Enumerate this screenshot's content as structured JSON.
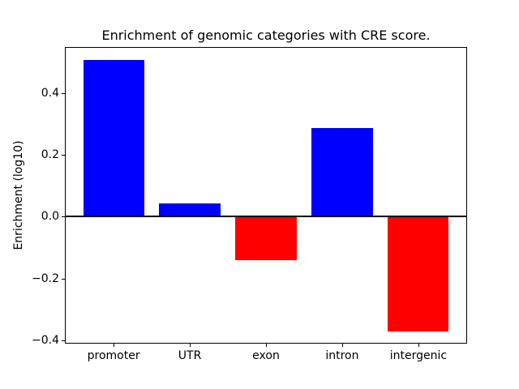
{
  "figure": {
    "background_color": "#ffffff",
    "axis_color": "#000000"
  },
  "chart_data": {
    "type": "bar",
    "title": "Enrichment of genomic categories with CRE score.",
    "xlabel": "",
    "ylabel": "Enrichment (log10)",
    "categories": [
      "promoter",
      "UTR",
      "exon",
      "intron",
      "intergenic"
    ],
    "values": [
      0.505,
      0.042,
      -0.14,
      0.285,
      -0.37
    ],
    "bar_colors": [
      "#0000ff",
      "#0000ff",
      "#ff0000",
      "#0000ff",
      "#ff0000"
    ],
    "positive_color": "#0000ff",
    "negative_color": "#ff0000",
    "ylim": [
      -0.41,
      0.548
    ],
    "yticks": [
      0.4,
      0.2,
      0.0,
      -0.2,
      -0.4
    ],
    "ytick_labels": [
      "0.4",
      "0.2",
      "0.0",
      "−0.2",
      "−0.4"
    ],
    "grid": false,
    "zero_line": true,
    "legend": null
  }
}
